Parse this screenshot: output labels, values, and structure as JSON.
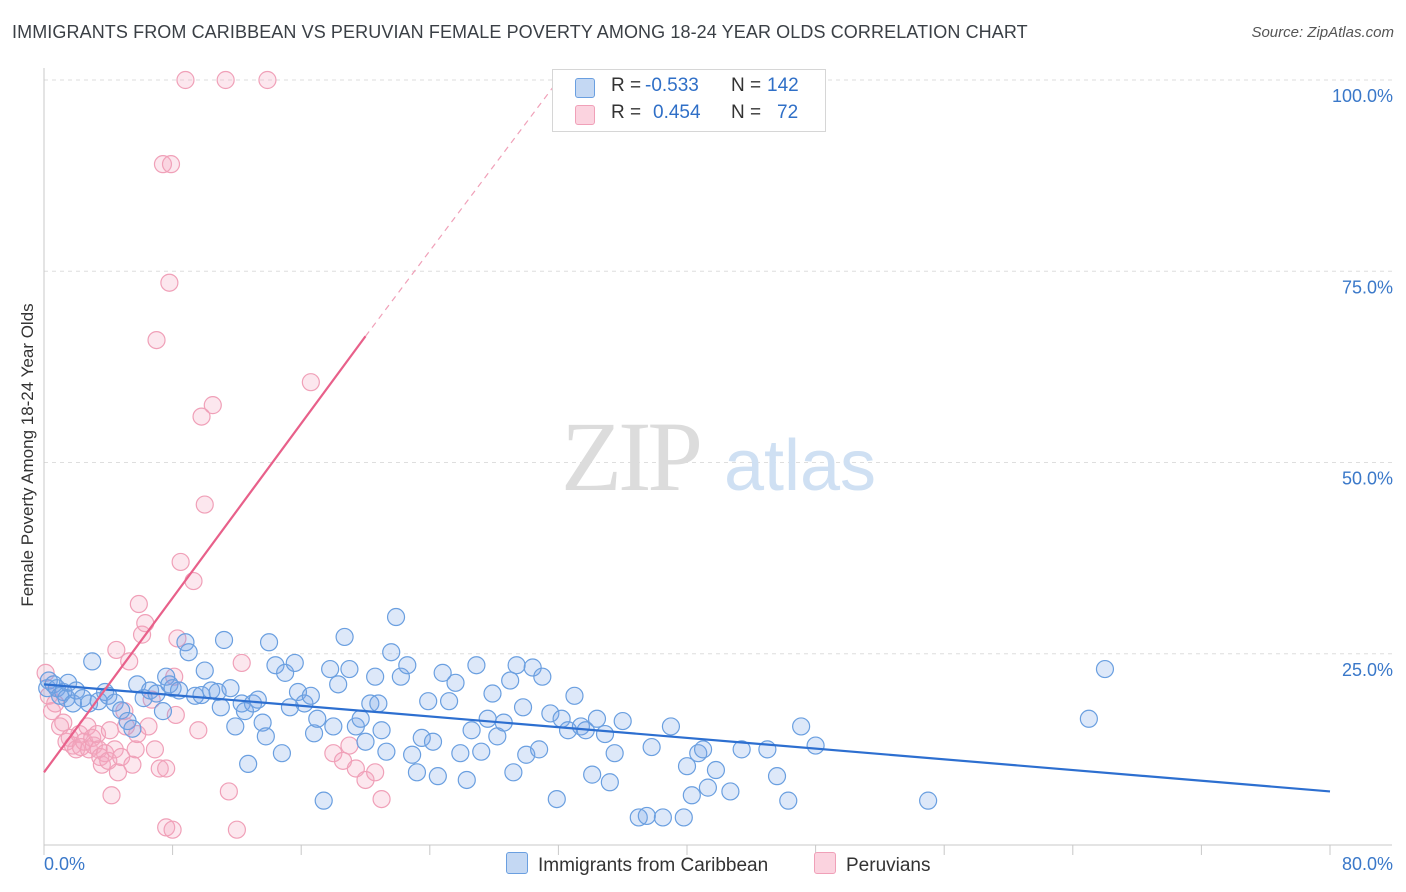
{
  "title": "IMMIGRANTS FROM CARIBBEAN VS PERUVIAN FEMALE POVERTY AMONG 18-24 YEAR OLDS CORRELATION CHART",
  "source": "Source: ZipAtlas.com",
  "watermark": {
    "zip": "ZIP",
    "atlas": "atlas"
  },
  "legend": {
    "r_label": "R =",
    "n_label": "N =",
    "series": [
      {
        "name": "Immigrants from Caribbean",
        "r": "-0.533",
        "n": "142",
        "color": "#6a9fe0",
        "line_color": "#2d6fd0"
      },
      {
        "name": "Peruvians",
        "r": "0.454",
        "n": "72",
        "color": "#f0a0b8",
        "line_color": "#e8608a"
      }
    ]
  },
  "chart_data": {
    "type": "scatter",
    "title": "IMMIGRANTS FROM CARIBBEAN VS PERUVIAN FEMALE POVERTY AMONG 18-24 YEAR OLDS CORRELATION CHART",
    "xlabel": "",
    "ylabel": "Female Poverty Among 18-24 Year Olds",
    "xlim": [
      0,
      80
    ],
    "ylim": [
      0,
      100
    ],
    "x_tick_labels": [
      "0.0%",
      "80.0%"
    ],
    "y_tick_labels": [
      "25.0%",
      "50.0%",
      "75.0%",
      "100.0%"
    ],
    "y_tick_values": [
      25,
      50,
      75,
      100
    ],
    "grid": true,
    "series": [
      {
        "name": "Immigrants from Caribbean",
        "trend": {
          "x": [
            0,
            80
          ],
          "y": [
            21.0,
            7.0
          ]
        },
        "points": [
          [
            0.2,
            20.5
          ],
          [
            0.3,
            21.5
          ],
          [
            0.6,
            21.0
          ],
          [
            0.8,
            20.5
          ],
          [
            1.0,
            19.5
          ],
          [
            1.2,
            20.0
          ],
          [
            1.4,
            19.2
          ],
          [
            1.5,
            21.2
          ],
          [
            1.8,
            18.5
          ],
          [
            2.0,
            20.2
          ],
          [
            2.4,
            19.2
          ],
          [
            2.8,
            18.5
          ],
          [
            3.0,
            24.0
          ],
          [
            3.4,
            18.8
          ],
          [
            3.8,
            20.0
          ],
          [
            4.0,
            19.5
          ],
          [
            4.4,
            18.6
          ],
          [
            4.8,
            17.6
          ],
          [
            5.2,
            16.2
          ],
          [
            5.5,
            15.2
          ],
          [
            5.8,
            21.0
          ],
          [
            6.2,
            19.2
          ],
          [
            6.6,
            20.2
          ],
          [
            7.0,
            19.8
          ],
          [
            7.4,
            17.5
          ],
          [
            7.6,
            22.0
          ],
          [
            7.8,
            21.0
          ],
          [
            8.0,
            20.5
          ],
          [
            8.4,
            20.2
          ],
          [
            8.8,
            26.5
          ],
          [
            9.0,
            25.2
          ],
          [
            9.4,
            19.5
          ],
          [
            9.8,
            19.6
          ],
          [
            10.0,
            22.8
          ],
          [
            10.4,
            20.2
          ],
          [
            10.8,
            20.0
          ],
          [
            11.0,
            18.0
          ],
          [
            11.2,
            26.8
          ],
          [
            11.6,
            20.5
          ],
          [
            11.9,
            15.5
          ],
          [
            12.3,
            18.5
          ],
          [
            12.5,
            17.5
          ],
          [
            12.7,
            10.6
          ],
          [
            13.0,
            18.5
          ],
          [
            13.3,
            19.0
          ],
          [
            13.6,
            16.0
          ],
          [
            13.8,
            14.2
          ],
          [
            14.0,
            26.5
          ],
          [
            14.4,
            23.5
          ],
          [
            14.8,
            12.0
          ],
          [
            15.0,
            22.5
          ],
          [
            15.3,
            18.0
          ],
          [
            15.6,
            23.8
          ],
          [
            15.8,
            20.0
          ],
          [
            16.2,
            18.5
          ],
          [
            16.6,
            19.5
          ],
          [
            16.8,
            14.6
          ],
          [
            17.0,
            16.5
          ],
          [
            17.4,
            5.8
          ],
          [
            17.8,
            23.0
          ],
          [
            18.0,
            15.5
          ],
          [
            18.3,
            21.0
          ],
          [
            18.7,
            27.2
          ],
          [
            19.0,
            23.0
          ],
          [
            19.4,
            15.5
          ],
          [
            19.7,
            16.5
          ],
          [
            20.0,
            13.5
          ],
          [
            20.3,
            18.5
          ],
          [
            20.6,
            22.0
          ],
          [
            20.8,
            18.5
          ],
          [
            21.0,
            15.0
          ],
          [
            21.3,
            12.2
          ],
          [
            21.6,
            25.2
          ],
          [
            21.9,
            29.8
          ],
          [
            22.2,
            22.0
          ],
          [
            22.6,
            23.5
          ],
          [
            22.9,
            11.8
          ],
          [
            23.2,
            9.5
          ],
          [
            23.5,
            14.0
          ],
          [
            23.9,
            18.8
          ],
          [
            24.2,
            13.5
          ],
          [
            24.5,
            9.0
          ],
          [
            24.8,
            22.5
          ],
          [
            25.2,
            18.8
          ],
          [
            25.6,
            21.2
          ],
          [
            25.9,
            12.0
          ],
          [
            26.3,
            8.5
          ],
          [
            26.6,
            15.0
          ],
          [
            26.9,
            23.5
          ],
          [
            27.2,
            12.2
          ],
          [
            27.6,
            16.5
          ],
          [
            27.9,
            19.8
          ],
          [
            28.2,
            14.2
          ],
          [
            28.6,
            16.0
          ],
          [
            29.0,
            21.5
          ],
          [
            29.2,
            9.5
          ],
          [
            29.4,
            23.5
          ],
          [
            29.8,
            18.0
          ],
          [
            30.0,
            11.8
          ],
          [
            30.4,
            23.2
          ],
          [
            30.8,
            12.5
          ],
          [
            31.0,
            22.0
          ],
          [
            31.5,
            17.2
          ],
          [
            31.9,
            6.0
          ],
          [
            32.2,
            16.5
          ],
          [
            32.6,
            15.0
          ],
          [
            33.0,
            19.5
          ],
          [
            33.4,
            15.5
          ],
          [
            33.7,
            15.0
          ],
          [
            34.1,
            9.2
          ],
          [
            34.4,
            16.5
          ],
          [
            34.9,
            14.5
          ],
          [
            35.2,
            8.2
          ],
          [
            35.5,
            12.0
          ],
          [
            36.0,
            16.2
          ],
          [
            37.0,
            3.6
          ],
          [
            37.5,
            3.8
          ],
          [
            37.8,
            12.8
          ],
          [
            38.5,
            3.6
          ],
          [
            39.0,
            15.5
          ],
          [
            39.8,
            3.6
          ],
          [
            40.0,
            10.3
          ],
          [
            40.3,
            6.5
          ],
          [
            40.7,
            12.0
          ],
          [
            41.0,
            12.5
          ],
          [
            41.3,
            7.5
          ],
          [
            41.8,
            9.8
          ],
          [
            42.7,
            7.0
          ],
          [
            43.4,
            12.5
          ],
          [
            45.0,
            12.5
          ],
          [
            45.6,
            9.0
          ],
          [
            46.3,
            5.8
          ],
          [
            47.1,
            15.5
          ],
          [
            48.0,
            13.0
          ],
          [
            55.0,
            5.8
          ],
          [
            65.0,
            16.5
          ],
          [
            66.0,
            23.0
          ]
        ]
      },
      {
        "name": "Peruvians",
        "trend": {
          "x": [
            0,
            20
          ],
          "y": [
            9.5,
            66.5
          ]
        },
        "trend_dashed": {
          "x": [
            20,
            32
          ],
          "y": [
            66.5,
            100.0
          ]
        },
        "points": [
          [
            0.1,
            22.5
          ],
          [
            0.3,
            19.5
          ],
          [
            0.5,
            17.5
          ],
          [
            0.7,
            18.5
          ],
          [
            1.0,
            15.5
          ],
          [
            1.2,
            16.0
          ],
          [
            1.4,
            13.5
          ],
          [
            1.6,
            14.0
          ],
          [
            1.8,
            13.0
          ],
          [
            2.0,
            12.5
          ],
          [
            2.2,
            14.5
          ],
          [
            2.3,
            12.8
          ],
          [
            2.5,
            13.5
          ],
          [
            2.7,
            15.5
          ],
          [
            2.8,
            12.5
          ],
          [
            3.0,
            14.0
          ],
          [
            3.1,
            13.0
          ],
          [
            3.3,
            14.5
          ],
          [
            3.4,
            12.5
          ],
          [
            3.5,
            11.5
          ],
          [
            3.6,
            10.5
          ],
          [
            3.8,
            12.0
          ],
          [
            4.0,
            11.0
          ],
          [
            4.1,
            15.0
          ],
          [
            4.2,
            6.5
          ],
          [
            4.4,
            12.5
          ],
          [
            4.5,
            25.5
          ],
          [
            4.6,
            9.5
          ],
          [
            4.8,
            11.5
          ],
          [
            5.0,
            17.5
          ],
          [
            5.1,
            15.5
          ],
          [
            5.3,
            24.0
          ],
          [
            5.5,
            10.5
          ],
          [
            5.7,
            12.5
          ],
          [
            5.8,
            14.5
          ],
          [
            5.9,
            31.5
          ],
          [
            6.1,
            27.5
          ],
          [
            6.3,
            29.0
          ],
          [
            6.5,
            15.5
          ],
          [
            6.7,
            19.0
          ],
          [
            6.9,
            12.5
          ],
          [
            7.0,
            66.0
          ],
          [
            7.2,
            10.0
          ],
          [
            7.4,
            89.0
          ],
          [
            7.6,
            2.3
          ],
          [
            7.6,
            10.0
          ],
          [
            7.8,
            73.5
          ],
          [
            7.9,
            89.0
          ],
          [
            8.0,
            2.0
          ],
          [
            8.1,
            22.0
          ],
          [
            8.2,
            17.0
          ],
          [
            8.3,
            27.0
          ],
          [
            8.5,
            37.0
          ],
          [
            8.8,
            100.0
          ],
          [
            9.3,
            34.5
          ],
          [
            9.6,
            15.0
          ],
          [
            9.8,
            56.0
          ],
          [
            10.0,
            44.5
          ],
          [
            10.5,
            57.5
          ],
          [
            11.3,
            100.0
          ],
          [
            11.5,
            7.0
          ],
          [
            12.0,
            2.0
          ],
          [
            12.3,
            23.8
          ],
          [
            13.9,
            100.0
          ],
          [
            16.6,
            60.5
          ],
          [
            18.0,
            12.0
          ],
          [
            18.6,
            11.0
          ],
          [
            19.0,
            13.0
          ],
          [
            19.4,
            10.0
          ],
          [
            20.0,
            8.5
          ],
          [
            20.6,
            9.5
          ],
          [
            21.0,
            6.0
          ]
        ]
      }
    ]
  }
}
